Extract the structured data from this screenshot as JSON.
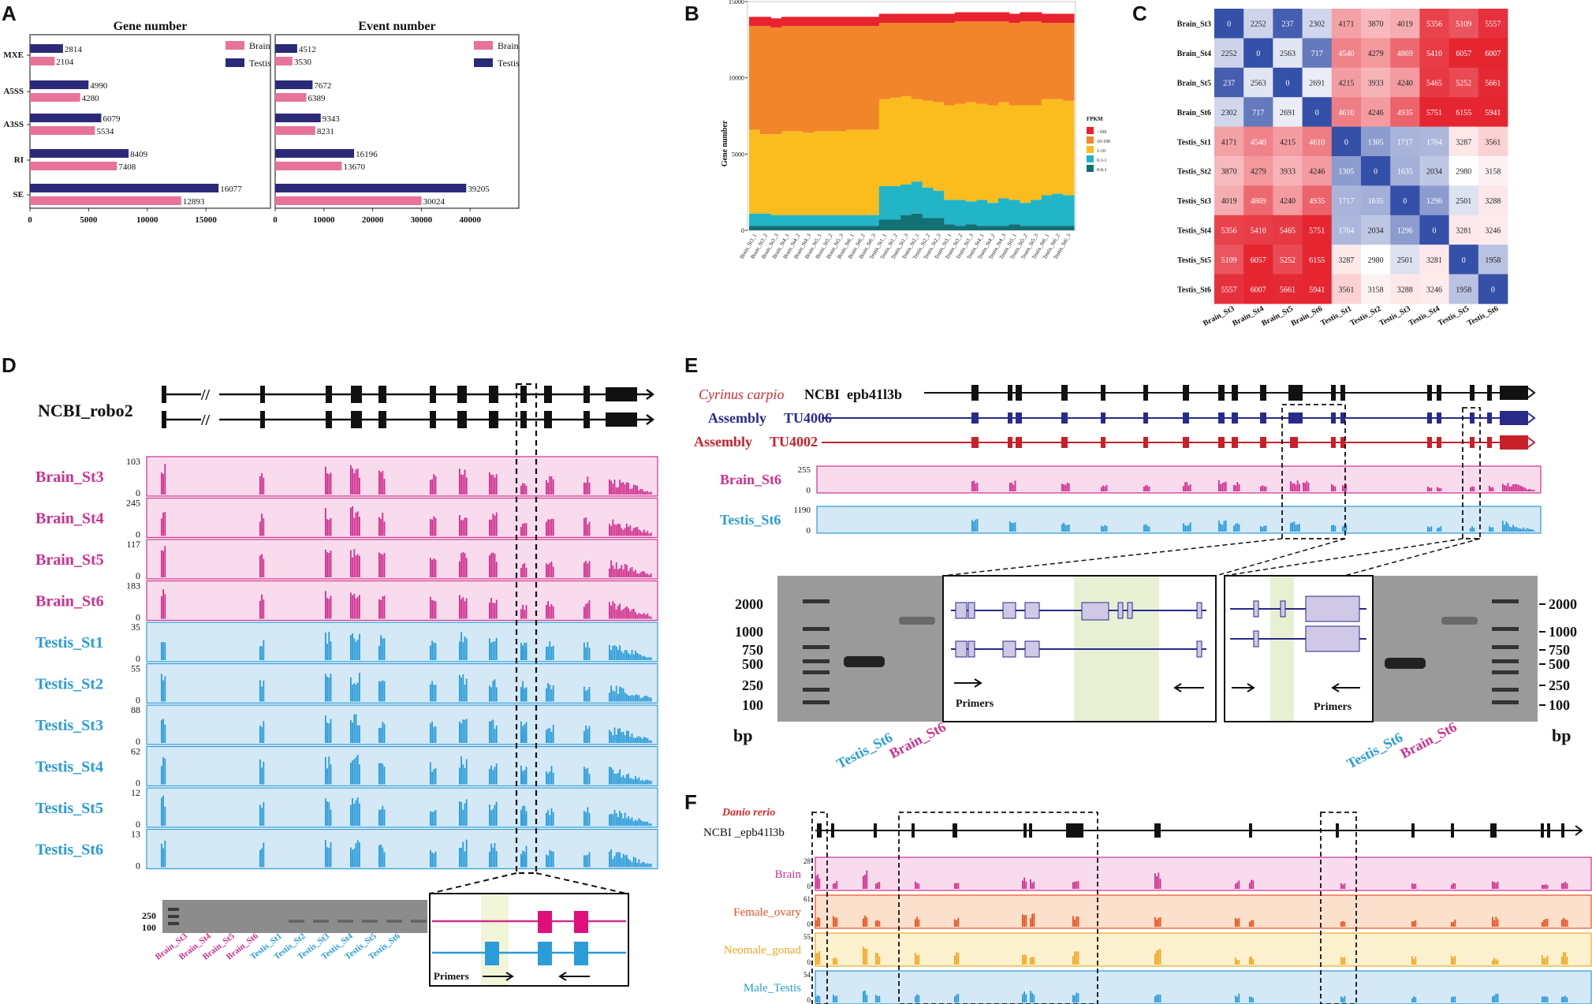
{
  "panel_labels": [
    "A",
    "B",
    "C",
    "D",
    "E",
    "F"
  ],
  "chart_data": [
    {
      "panel": "A-left",
      "type": "bar",
      "title": "Gene number",
      "orientation": "horizontal",
      "categories": [
        "MXE",
        "A5SS",
        "A3SS",
        "RI",
        "SE"
      ],
      "series": [
        {
          "name": "Testis",
          "color": "#2a2a78",
          "values": [
            2814,
            4990,
            6079,
            8409,
            16077
          ]
        },
        {
          "name": "Brain",
          "color": "#e8739a",
          "values": [
            2104,
            4280,
            5534,
            7408,
            12893
          ]
        }
      ],
      "xlim": [
        0,
        20500
      ],
      "xticks": [
        "0",
        "5000",
        "10000",
        "15000"
      ],
      "legend": [
        "Brain",
        "Testis"
      ]
    },
    {
      "panel": "A-right",
      "type": "bar",
      "title": "Event number",
      "orientation": "horizontal",
      "categories": [
        "MXE",
        "A5SS",
        "A3SS",
        "RI",
        "SE"
      ],
      "series": [
        {
          "name": "Testis",
          "color": "#2a2a78",
          "values": [
            4512,
            7672,
            9343,
            16196,
            39205
          ]
        },
        {
          "name": "Brain",
          "color": "#e8739a",
          "values": [
            3530,
            6389,
            8231,
            13670,
            30024
          ]
        }
      ],
      "xlim": [
        0,
        50000
      ],
      "xticks": [
        "0",
        "10000",
        "20000",
        "30000",
        "40000"
      ],
      "legend": [
        "Brain",
        "Testis"
      ]
    },
    {
      "panel": "B",
      "type": "bar",
      "stacked": true,
      "ylabel": "Gene number",
      "ylim": [
        0,
        15000
      ],
      "yticks": [
        "0",
        "5000",
        "10000",
        "15000"
      ],
      "legend_title": "FPKM",
      "legend": [
        {
          "label": ">100",
          "color": "#e8222e"
        },
        {
          "label": "10-100",
          "color": "#f2842a"
        },
        {
          "label": "1-10",
          "color": "#fbbd1e"
        },
        {
          "label": "0.1-1",
          "color": "#22b5c8"
        },
        {
          "label": "0-0.1",
          "color": "#137075"
        }
      ],
      "categories": [
        "Brain_St3_1",
        "Brain_St3_2",
        "Brain_St3_3",
        "Brain_St4_1",
        "Brain_St4_2",
        "Brain_St4_3",
        "Brain_St5_1",
        "Brain_St5_2",
        "Brain_St5_3",
        "Brain_St6_1",
        "Brain_St6_2",
        "Brain_St6_3",
        "Testis_St1_1",
        "Testis_St1_2",
        "Testis_St1_3",
        "Testis_St2_1",
        "Testis_St2_2",
        "Testis_St2_3",
        "Testis_St3_1",
        "Testis_St3_2",
        "Testis_St3_3",
        "Testis_St4_1",
        "Testis_St4_2",
        "Testis_St4_3",
        "Testis_St5_1",
        "Testis_St5_2",
        "Testis_St5_3",
        "Testis_St6_1",
        "Testis_St6_2",
        "Testis_St6_3"
      ],
      "series": [
        {
          "name": "0-0.1",
          "values": [
            300,
            300,
            300,
            300,
            300,
            300,
            300,
            300,
            300,
            300,
            300,
            300,
            700,
            700,
            1000,
            1100,
            800,
            800,
            400,
            300,
            400,
            300,
            300,
            300,
            400,
            300,
            300,
            300,
            300,
            300
          ]
        },
        {
          "name": "0.1-1",
          "values": [
            800,
            800,
            700,
            700,
            700,
            700,
            700,
            700,
            700,
            700,
            700,
            700,
            2200,
            2200,
            2000,
            2100,
            2000,
            1800,
            1600,
            1700,
            1500,
            1700,
            1500,
            1800,
            1600,
            1500,
            1700,
            2000,
            2100,
            2000
          ]
        },
        {
          "name": "1-10",
          "values": [
            5500,
            5200,
            5300,
            5500,
            5500,
            5400,
            5500,
            5500,
            5500,
            5600,
            5600,
            5600,
            5700,
            5800,
            5800,
            5400,
            5700,
            5800,
            6200,
            6300,
            6500,
            6300,
            6400,
            6300,
            6200,
            6400,
            6200,
            6300,
            6200,
            6200
          ]
        },
        {
          "name": "10-100",
          "values": [
            6800,
            7100,
            7000,
            6900,
            6900,
            7000,
            6900,
            6900,
            6900,
            6800,
            6800,
            6800,
            5000,
            4900,
            4800,
            5000,
            5100,
            5200,
            5400,
            5400,
            5300,
            5400,
            5500,
            5300,
            5400,
            5500,
            5500,
            5000,
            5000,
            5100
          ]
        },
        {
          "name": ">100",
          "values": [
            600,
            600,
            600,
            600,
            600,
            600,
            600,
            600,
            600,
            600,
            600,
            600,
            600,
            600,
            600,
            600,
            600,
            600,
            600,
            600,
            600,
            600,
            600,
            600,
            600,
            600,
            600,
            600,
            600,
            600
          ]
        }
      ]
    },
    {
      "panel": "C",
      "type": "heatmap",
      "labels": [
        "Brain_St3",
        "Brain_St4",
        "Brain_St5",
        "Brain_St6",
        "Testis_St1",
        "Testis_St2",
        "Testis_St3",
        "Testis_St4",
        "Testis_St5",
        "Testis_St6"
      ],
      "values": [
        [
          0,
          2252,
          237,
          2302,
          4171,
          3870,
          4019,
          5356,
          5109,
          5557
        ],
        [
          2252,
          0,
          2563,
          717,
          4540,
          4279,
          4869,
          5410,
          6057,
          6007
        ],
        [
          237,
          2563,
          0,
          2691,
          4215,
          3933,
          4240,
          5465,
          5252,
          5661
        ],
        [
          2302,
          717,
          2691,
          0,
          4610,
          4246,
          4935,
          5751,
          6155,
          5941
        ],
        [
          4171,
          4540,
          4215,
          4610,
          0,
          1305,
          1717,
          1764,
          3287,
          3561
        ],
        [
          3870,
          4279,
          3933,
          4246,
          1305,
          0,
          1635,
          2034,
          2980,
          3158
        ],
        [
          4019,
          4869,
          4240,
          4935,
          1717,
          1635,
          0,
          1296,
          2501,
          3288
        ],
        [
          5356,
          5410,
          5465,
          5751,
          1764,
          2034,
          1296,
          0,
          3281,
          3246
        ],
        [
          5109,
          6057,
          5252,
          6155,
          3287,
          2980,
          2501,
          3281,
          0,
          1958
        ],
        [
          5557,
          6007,
          5661,
          5941,
          3561,
          3158,
          3288,
          3246,
          1958,
          0
        ]
      ],
      "color_low": "#3550a8",
      "color_mid": "#ffffff",
      "color_high": "#e52631"
    }
  ],
  "panelD": {
    "gene_label": "NCBI_robo2",
    "tracks": [
      {
        "name": "Brain_St3",
        "max": "103",
        "group": "brain"
      },
      {
        "name": "Brain_St4",
        "max": "245",
        "group": "brain"
      },
      {
        "name": "Brain_St5",
        "max": "117",
        "group": "brain"
      },
      {
        "name": "Brain_St6",
        "max": "183",
        "group": "brain"
      },
      {
        "name": "Testis_St1",
        "max": "35",
        "group": "testis"
      },
      {
        "name": "Testis_St2",
        "max": "55",
        "group": "testis"
      },
      {
        "name": "Testis_St3",
        "max": "88",
        "group": "testis"
      },
      {
        "name": "Testis_St4",
        "max": "62",
        "group": "testis"
      },
      {
        "name": "Testis_St5",
        "max": "12",
        "group": "testis"
      },
      {
        "name": "Testis_St6",
        "max": "13",
        "group": "testis"
      }
    ],
    "zero_label": "0",
    "gel_markers": [
      "250",
      "100"
    ],
    "gel_lanes": [
      "Brain_St3",
      "Brain_St4",
      "Brain_St5",
      "Brain_St6",
      "Testis_St1",
      "Testis_St2",
      "Testis_St3",
      "Testis_St4",
      "Testis_St5",
      "Testis_St6"
    ],
    "primers_label": "Primers"
  },
  "panelE": {
    "species": "Cyrinus carpio",
    "ncbi_label": "NCBI",
    "gene": "epb41l3b",
    "assembly1_prefix": "Assembly",
    "assembly1_name": "TU4006",
    "assembly2_prefix": "Assembly",
    "assembly2_name": "TU4002",
    "tracks": [
      {
        "name": "Brain_St6",
        "max": "255"
      },
      {
        "name": "Testis_St6",
        "max": "1190"
      }
    ],
    "zero_label": "0",
    "left_markers": [
      "2000",
      "1000",
      "750",
      "500",
      "250",
      "100"
    ],
    "right_markers": [
      "2000",
      "1000",
      "750",
      "500",
      "250",
      "100"
    ],
    "bp_label": "bp",
    "lane_labels": [
      "Testis_St6",
      "Brain_St6"
    ],
    "primers_label": "Primers"
  },
  "panelF": {
    "species": "Danio rerio",
    "gene_label": "NCBI _epb41l3b",
    "tracks": [
      {
        "name": "Brain",
        "max": "28",
        "color": "#d0308e",
        "bg": "#f8dcee"
      },
      {
        "name": "Female_ovary",
        "max": "61",
        "color": "#e8521f",
        "bg": "#fbe0cc"
      },
      {
        "name": "Neomale_gonad",
        "max": "55",
        "color": "#f0a824",
        "bg": "#fcf1cf"
      },
      {
        "name": "Male_Testis",
        "max": "54",
        "color": "#2a9cd8",
        "bg": "#d4e8f6"
      }
    ],
    "zero_label": "0"
  }
}
